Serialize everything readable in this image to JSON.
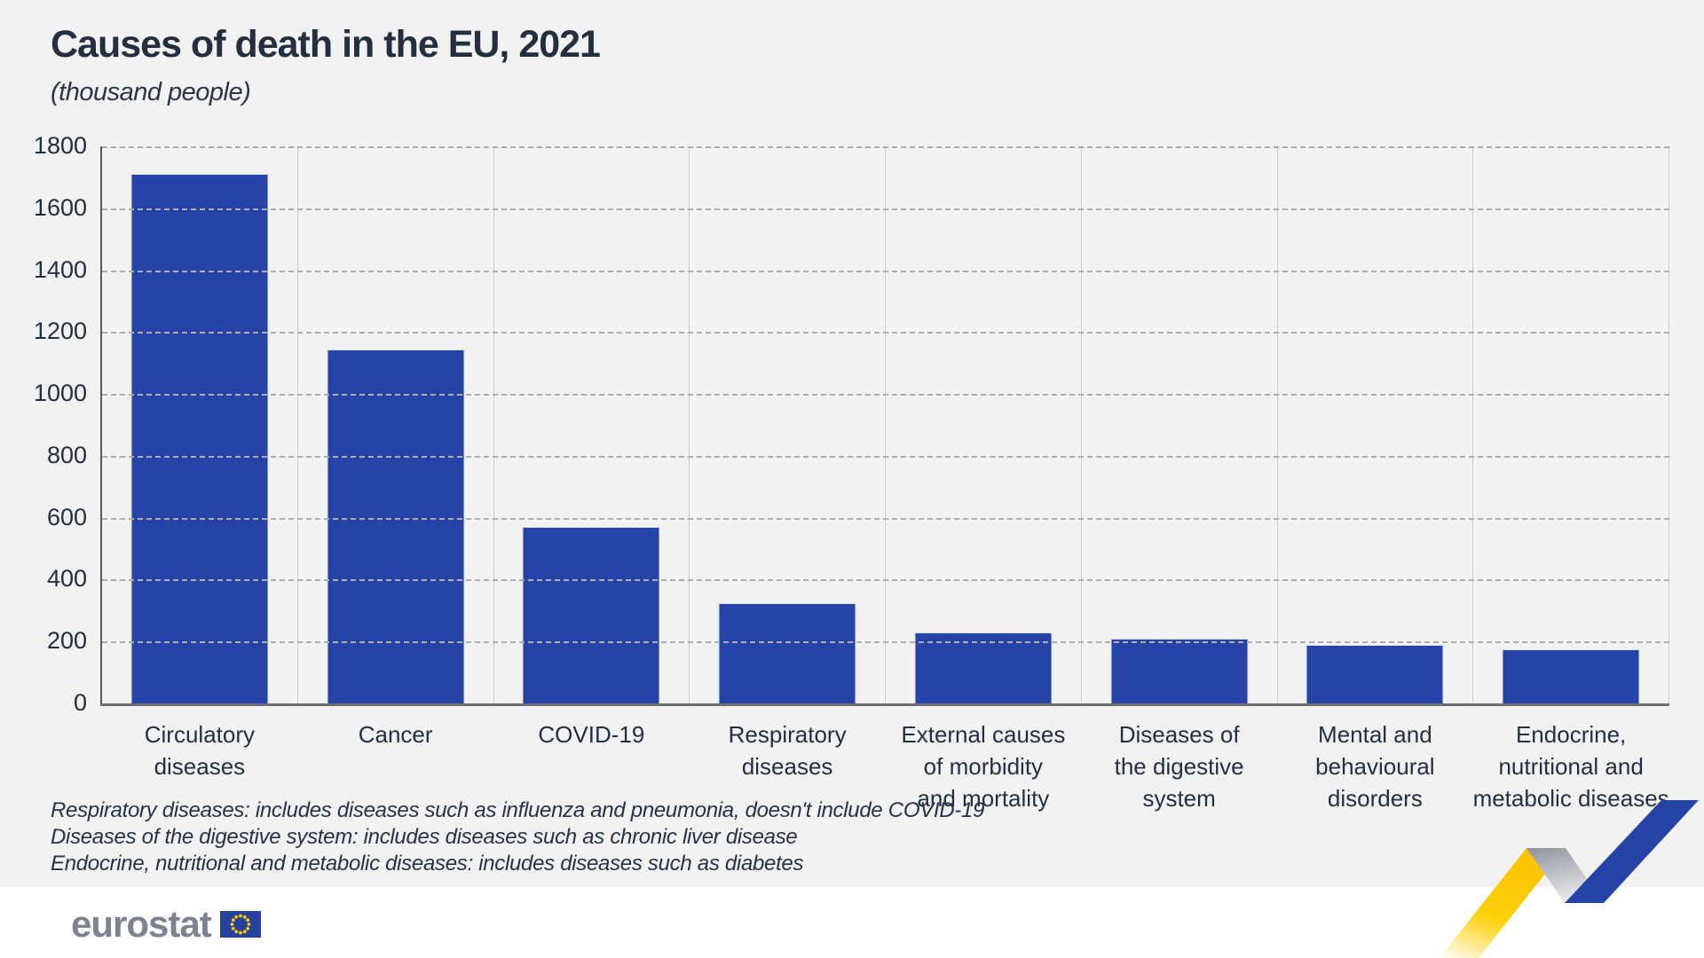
{
  "header": {
    "title": "Causes of death in the EU, 2021",
    "subtitle": "(thousand people)"
  },
  "chart_data": {
    "type": "bar",
    "title": "Causes of death in the EU, 2021",
    "subtitle": "(thousand people)",
    "unit": "thousand people",
    "categories": [
      "Circulatory diseases",
      "Cancer",
      "COVID-19",
      "Respiratory diseases",
      "External causes\nof morbidity\nand mortality",
      "Diseases of\nthe digestive system",
      "Mental and\nbehavioural disorders",
      "Endocrine,\nnutritional and\nmetabolic diseases"
    ],
    "values": [
      1710,
      1145,
      570,
      325,
      230,
      210,
      190,
      175
    ],
    "ylim": [
      0,
      1800
    ],
    "yticks": [
      0,
      200,
      400,
      600,
      800,
      1000,
      1200,
      1400,
      1600,
      1800
    ],
    "grid": "horizontal-dashed",
    "legend": "none",
    "bar_color": "#2644a7"
  },
  "footnotes": [
    "Respiratory diseases: includes diseases such as influenza and pneumonia, doesn't include COVID-19",
    "Diseases of the digestive system: includes diseases such as chronic liver disease",
    "Endocrine, nutritional and metabolic diseases: includes diseases such as diabetes"
  ],
  "footer": {
    "logo_text": "eurostat"
  },
  "colors": {
    "background": "#f2f2f2",
    "footer_background": "#ffffff",
    "bar": "#2644a7",
    "title_text": "#232f3f",
    "gridline": "#adadad",
    "logo_gray": "#7d828e",
    "flag_blue": "#26429c",
    "star_yellow": "#ffcc00",
    "ribbon_yellow": "#fcc300",
    "ribbon_blue": "#2644a7"
  }
}
